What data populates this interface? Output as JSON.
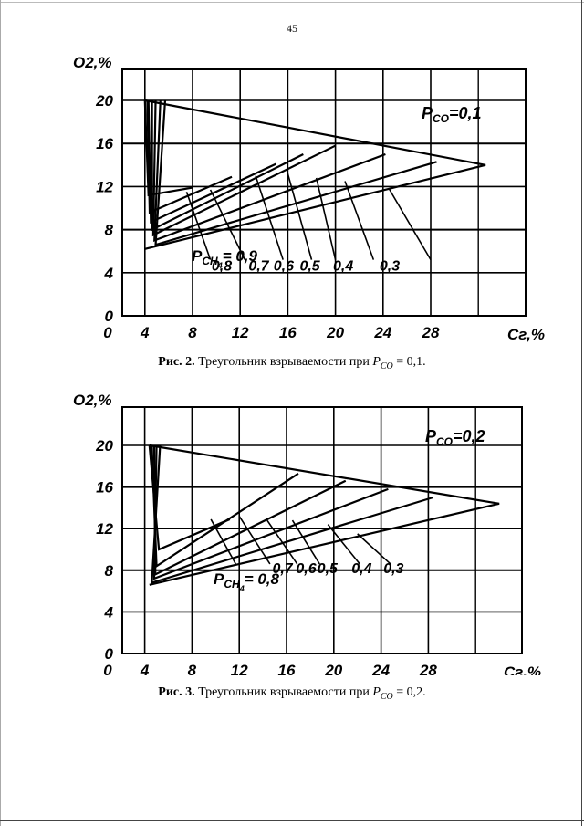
{
  "page_number": "45",
  "captions": [
    {
      "label": "Рис. 2.",
      "text": "Треугольник взрываемости при",
      "symbol": "P",
      "subscript": "CO",
      "value": "= 0,1."
    },
    {
      "label": "Рис. 3.",
      "text": "Треугольник взрываемости при",
      "symbol": "P",
      "subscript": "CO",
      "value": "= 0,2."
    }
  ],
  "chart_data": [
    {
      "type": "line",
      "x_ticks": [
        "0",
        "4",
        "8",
        "12",
        "16",
        "20",
        "24",
        "28"
      ],
      "y_ticks": [
        "0",
        "4",
        "8",
        "12",
        "16",
        "20"
      ],
      "xlabel": "Сг,%",
      "ylabel": "O2,%",
      "xlim": [
        0,
        34
      ],
      "ylim": [
        0,
        22
      ],
      "grid": true,
      "param_label": "PCO=0,1",
      "param_label_text": "=0,1",
      "ch4_label_prefix": "= 0,9",
      "series": [
        {
          "name": "0,9",
          "points": [
            [
              4.0,
              20.0
            ],
            [
              4.3,
              11.2
            ],
            [
              8.0,
              11.9
            ]
          ]
        },
        {
          "name": "0,8",
          "points": [
            [
              4.2,
              20.0
            ],
            [
              4.4,
              9.6
            ],
            [
              11.3,
              12.9
            ]
          ]
        },
        {
          "name": "0,7",
          "points": [
            [
              4.3,
              20.0
            ],
            [
              4.5,
              8.7
            ],
            [
              15.0,
              14.1
            ]
          ]
        },
        {
          "name": "0,6",
          "points": [
            [
              4.6,
              20.0
            ],
            [
              4.6,
              8.0
            ],
            [
              17.3,
              15.0
            ]
          ]
        },
        {
          "name": "0,5",
          "points": [
            [
              4.9,
              20.0
            ],
            [
              4.7,
              7.5
            ],
            [
              20.0,
              15.8
            ]
          ]
        },
        {
          "name": "0,4",
          "points": [
            [
              5.3,
              20.0
            ],
            [
              4.8,
              7.0
            ],
            [
              24.2,
              15.0
            ]
          ]
        },
        {
          "name": "0,3",
          "points": [
            [
              5.7,
              20.0
            ],
            [
              4.9,
              6.6
            ],
            [
              28.5,
              14.3
            ]
          ]
        },
        {
          "name": "0,1",
          "points": [
            [
              4.0,
              20.0
            ],
            [
              32.6,
              14.0
            ],
            [
              4.0,
              6.2
            ]
          ]
        }
      ],
      "line_labels": [
        {
          "text": "0,8",
          "x": 9.6,
          "y": 4.2
        },
        {
          "text": "0,7",
          "x": 12.7,
          "y": 4.2
        },
        {
          "text": "0,6",
          "x": 14.8,
          "y": 4.2
        },
        {
          "text": "0,5",
          "x": 17.0,
          "y": 4.2
        },
        {
          "text": "0,4",
          "x": 19.8,
          "y": 4.2
        },
        {
          "text": "0,3",
          "x": 23.7,
          "y": 4.2
        }
      ],
      "pointer_lines": [
        [
          [
            7.5,
            11.5
          ],
          [
            9.5,
            5.2
          ]
        ],
        [
          [
            9.5,
            11.7
          ],
          [
            12.4,
            5.2
          ]
        ],
        [
          [
            13.3,
            13.0
          ],
          [
            15.6,
            5.2
          ]
        ],
        [
          [
            16.0,
            13.2
          ],
          [
            18.0,
            5.2
          ]
        ],
        [
          [
            18.4,
            12.8
          ],
          [
            20.0,
            5.2
          ]
        ],
        [
          [
            20.8,
            12.5
          ],
          [
            23.2,
            5.2
          ]
        ],
        [
          [
            24.5,
            11.8
          ],
          [
            28.0,
            5.2
          ]
        ]
      ]
    },
    {
      "type": "line",
      "x_ticks": [
        "0",
        "4",
        "8",
        "12",
        "16",
        "20",
        "24",
        "28"
      ],
      "y_ticks": [
        "0",
        "4",
        "8",
        "12",
        "16",
        "20"
      ],
      "xlabel": "Сг,%",
      "ylabel": "O2,%",
      "xlim": [
        0,
        34
      ],
      "ylim": [
        0,
        22
      ],
      "grid": true,
      "param_label": "PCO=0,2",
      "param_label_text": "=0,2",
      "ch4_label_prefix": "= 0,8",
      "series": [
        {
          "name": "0,8",
          "points": [
            [
              4.4,
              20.0
            ],
            [
              5.2,
              10.0
            ],
            [
              11.2,
              12.9
            ]
          ]
        },
        {
          "name": "0,7",
          "points": [
            [
              4.6,
              20.0
            ],
            [
              5.0,
              8.4
            ],
            [
              17.0,
              17.3
            ]
          ]
        },
        {
          "name": "0,6",
          "points": [
            [
              4.8,
              20.0
            ],
            [
              4.9,
              7.6
            ],
            [
              21.0,
              16.6
            ]
          ]
        },
        {
          "name": "0,5",
          "points": [
            [
              5.0,
              20.0
            ],
            [
              4.8,
              7.2
            ],
            [
              24.6,
              15.8
            ]
          ]
        },
        {
          "name": "0,4",
          "points": [
            [
              5.3,
              20.0
            ],
            [
              4.6,
              6.8
            ],
            [
              28.4,
              15.0
            ]
          ]
        },
        {
          "name": "0,2",
          "points": [
            [
              4.4,
              20.0
            ],
            [
              34.0,
              14.4
            ],
            [
              4.4,
              6.6
            ]
          ]
        }
      ],
      "line_labels": [
        {
          "text": "0,7",
          "x": 14.8,
          "y": 7.7
        },
        {
          "text": "0,6",
          "x": 16.8,
          "y": 7.7
        },
        {
          "text": "0,5",
          "x": 18.6,
          "y": 7.7
        },
        {
          "text": "0,4",
          "x": 21.5,
          "y": 7.7
        },
        {
          "text": "0,3",
          "x": 24.2,
          "y": 7.7
        }
      ],
      "pointer_lines": [
        [
          [
            9.6,
            12.9
          ],
          [
            11.7,
            8.6
          ]
        ],
        [
          [
            12.0,
            13.2
          ],
          [
            14.6,
            8.6
          ]
        ],
        [
          [
            14.3,
            12.9
          ],
          [
            16.9,
            8.6
          ]
        ],
        [
          [
            16.5,
            12.8
          ],
          [
            18.8,
            8.6
          ]
        ],
        [
          [
            19.5,
            12.4
          ],
          [
            22.2,
            8.6
          ]
        ],
        [
          [
            22.0,
            11.5
          ],
          [
            24.8,
            8.6
          ]
        ]
      ]
    }
  ]
}
